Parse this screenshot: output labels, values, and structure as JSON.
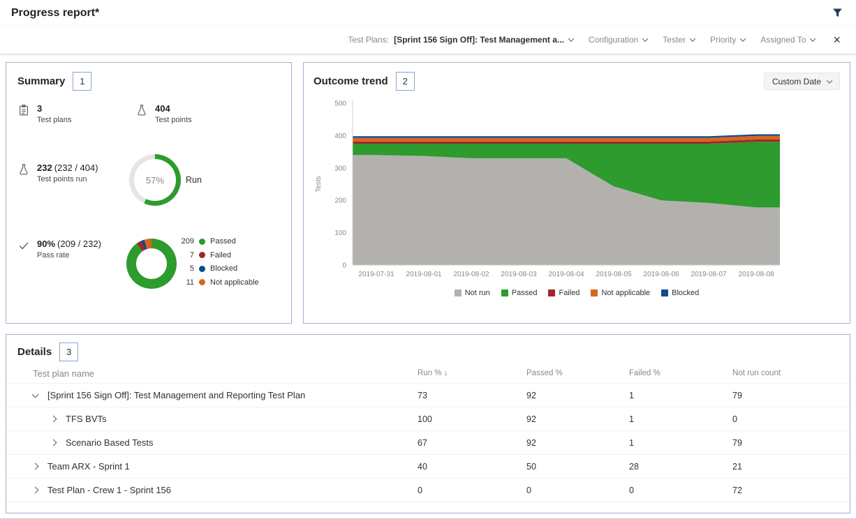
{
  "colors": {
    "not_run": "#b3b1ae",
    "passed": "#2d9b2d",
    "failed": "#a3262c",
    "not_applicable": "#d9661e",
    "blocked": "#0f4c8c",
    "ring_track": "#e6e5e4",
    "card_border": "#a3b2cc",
    "badge_border": "#88a6cc"
  },
  "header": {
    "title": "Progress report*"
  },
  "filter_bar": {
    "test_plans_label": "Test Plans:",
    "test_plans_value": "[Sprint 156 Sign Off]: Test Management a...",
    "dropdowns": [
      {
        "label": "Configuration"
      },
      {
        "label": "Tester"
      },
      {
        "label": "Priority"
      },
      {
        "label": "Assigned To"
      }
    ],
    "close_icon": "×"
  },
  "summary": {
    "title": "Summary",
    "badge": "1",
    "stats": [
      {
        "value": "3",
        "suffix": "",
        "label": "Test plans"
      },
      {
        "value": "404",
        "suffix": "",
        "label": "Test points"
      },
      {
        "value": "232",
        "suffix": "(232 / 404)",
        "label": "Test points run"
      },
      {
        "value": "90%",
        "suffix": "(209 / 232)",
        "label": "Pass rate"
      }
    ],
    "run_donut": {
      "percent": 57,
      "percent_label": "57%",
      "label": "Run"
    },
    "outcome_donut": {
      "segments": [
        {
          "count": 209,
          "label": "Passed",
          "color": "#2d9b2d"
        },
        {
          "count": 7,
          "label": "Failed",
          "color": "#a3262c"
        },
        {
          "count": 5,
          "label": "Blocked",
          "color": "#0f4c8c"
        },
        {
          "count": 11,
          "label": "Not applicable",
          "color": "#d9661e"
        }
      ]
    }
  },
  "trend": {
    "title": "Outcome trend",
    "badge": "2",
    "date_button": "Custom Date"
  },
  "chart_data": {
    "type": "area",
    "title": "Outcome trend",
    "xlabel": "",
    "ylabel": "Tests",
    "ylim": [
      0,
      500
    ],
    "yticks": [
      0,
      100,
      200,
      300,
      400,
      500
    ],
    "grid": false,
    "legend_position": "bottom",
    "x": [
      "2019-07-31",
      "2019-08-01",
      "2019-08-02",
      "2019-08-03",
      "2019-08-04",
      "2019-08-05",
      "2019-08-06",
      "2019-08-07",
      "2019-08-08"
    ],
    "series": [
      {
        "name": "Not run",
        "color": "#b3b1ae",
        "values": [
          340,
          337,
          330,
          330,
          330,
          243,
          200,
          192,
          178
        ]
      },
      {
        "name": "Passed",
        "color": "#2d9b2d",
        "values": [
          35,
          38,
          45,
          45,
          45,
          132,
          175,
          183,
          203
        ]
      },
      {
        "name": "Failed",
        "color": "#a3262c",
        "values": [
          7,
          7,
          7,
          7,
          7,
          7,
          7,
          7,
          7
        ]
      },
      {
        "name": "Not applicable",
        "color": "#d9661e",
        "values": [
          11,
          11,
          11,
          11,
          11,
          11,
          11,
          11,
          11
        ]
      },
      {
        "name": "Blocked",
        "color": "#0f4c8c",
        "values": [
          5,
          5,
          5,
          5,
          5,
          5,
          5,
          5,
          5
        ]
      }
    ]
  },
  "details": {
    "title": "Details",
    "badge": "3",
    "columns": [
      "Test plan name",
      "Run % ↓",
      "Passed %",
      "Failed %",
      "Not run count"
    ],
    "rows": [
      {
        "name": "[Sprint 156 Sign Off]: Test Management and Reporting Test Plan",
        "level": 0,
        "expanded": true,
        "run": "73",
        "passed": "92",
        "failed": "1",
        "not_run": "79"
      },
      {
        "name": "TFS BVTs",
        "level": 1,
        "expanded": false,
        "run": "100",
        "passed": "92",
        "failed": "1",
        "not_run": "0"
      },
      {
        "name": "Scenario Based Tests",
        "level": 1,
        "expanded": false,
        "run": "67",
        "passed": "92",
        "failed": "1",
        "not_run": "79"
      },
      {
        "name": "Team ARX - Sprint 1",
        "level": 0,
        "expanded": false,
        "run": "40",
        "passed": "50",
        "failed": "28",
        "not_run": "21"
      },
      {
        "name": "Test Plan - Crew 1 - Sprint 156",
        "level": 0,
        "expanded": false,
        "run": "0",
        "passed": "0",
        "failed": "0",
        "not_run": "72"
      }
    ]
  }
}
